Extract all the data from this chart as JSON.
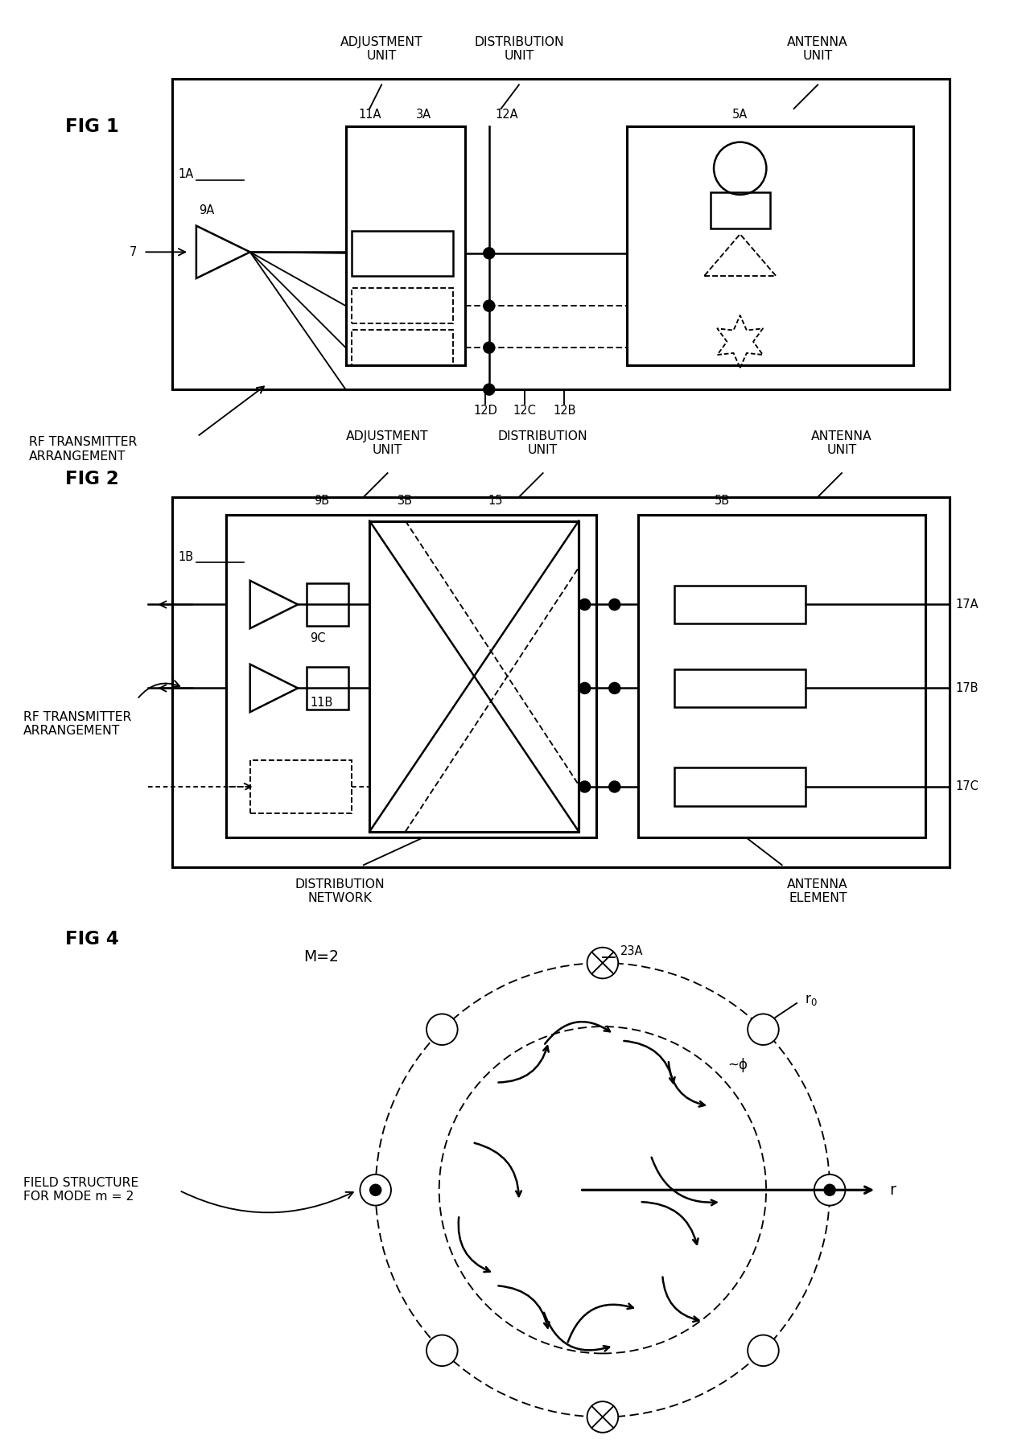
{
  "background_color": "#ffffff",
  "fig1": {
    "title": "FIG 1",
    "label_1A": "1A",
    "label_7": "7",
    "label_9A": "9A",
    "label_11A": "11A",
    "label_3A": "3A",
    "label_12A": "12A",
    "label_5A": "5A",
    "label_12B": "12B",
    "label_12C": "12C",
    "label_12D": "12D",
    "header_adj": "ADJUSTMENT\nUNIT",
    "header_dist": "DISTRIBUTION\nUNIT",
    "header_ant": "ANTENNA\nUNIT",
    "footer_rf": "RF TRANSMITTER\nARRANGEMENT"
  },
  "fig2": {
    "title": "FIG 2",
    "label_1B": "1B",
    "label_9B": "9B",
    "label_3B": "3B",
    "label_15": "15",
    "label_5B": "5B",
    "label_9C": "9C",
    "label_11B": "11B",
    "label_17A": "17A",
    "label_17B": "17B",
    "label_17C": "17C",
    "header_adj": "ADJUSTMENT\nUNIT",
    "header_dist": "DISTRIBUTION\nUNIT",
    "header_ant": "ANTENNA\nUNIT",
    "footer_rf": "RF TRANSMITTER\nARRANGEMENT",
    "footer_dn": "DISTRIBUTION\nNETWORK",
    "footer_ae": "ANTENNA\nELEMENT"
  },
  "fig4": {
    "title": "FIG 4",
    "label_M2": "M=2",
    "label_23A": "23A",
    "label_r0": "r",
    "label_phi": "ϕ",
    "label_r": "r",
    "label_field": "FIELD STRUCTURE\nFOR MODE m = 2"
  }
}
